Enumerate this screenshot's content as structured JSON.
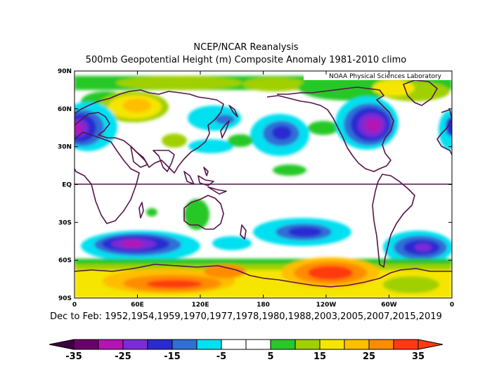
{
  "title_line1": "NCEP/NCAR Reanalysis",
  "title_line2": "500mb Geopotential Height (m) Composite Anomaly 1981-2010 climo",
  "credit": "NOAA Physical Sciences Laboratory",
  "lat_ticks": [
    "90N",
    "60N",
    "30N",
    "EQ",
    "30S",
    "60S",
    "90S"
  ],
  "lon_ticks": [
    "0",
    "60E",
    "120E",
    "180",
    "120W",
    "60W",
    "0"
  ],
  "caption": "Dec to Feb: 1952,1954,1959,1970,1977,1978,1980,1988,2003,2005,2007,2015,2019",
  "colorbar": {
    "labels": [
      "-35",
      "-25",
      "-15",
      "-5",
      "5",
      "15",
      "25",
      "35"
    ],
    "colors": [
      "#6a006a",
      "#b414b4",
      "#7a2cd6",
      "#2a2ad0",
      "#2f6fd6",
      "#00e0f0",
      "#ffffff",
      "#ffffff",
      "#28c828",
      "#a0d000",
      "#f5e500",
      "#ffbe00",
      "#ff8c00",
      "#ff3a10"
    ]
  },
  "colors": {
    "coast": "#55154a",
    "equator": "#55154a"
  }
}
